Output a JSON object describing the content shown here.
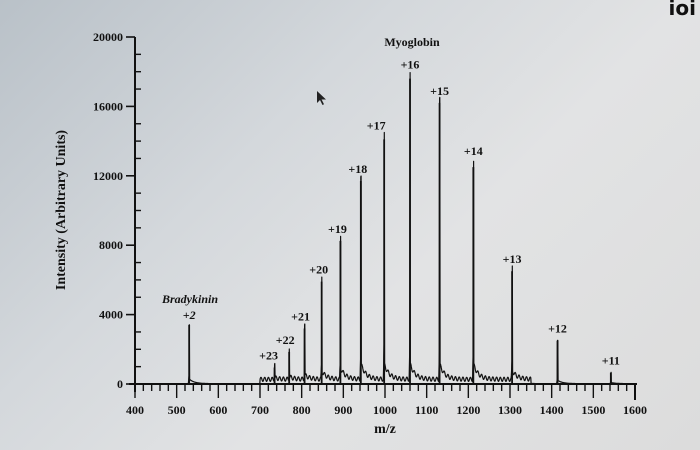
{
  "corner_text": "ioi",
  "chart_data": {
    "type": "line",
    "title": "",
    "xlabel": "m/z",
    "ylabel": "Intensity (Arbitrary Units)",
    "xlim": [
      400,
      1600
    ],
    "ylim": [
      0,
      20000
    ],
    "grid": false,
    "legend": null,
    "x_ticks": [
      "400",
      "500",
      "600",
      "700",
      "800",
      "900",
      "1000",
      "1100",
      "1200",
      "1300",
      "1400",
      "1500",
      "1600"
    ],
    "y_ticks": [
      "0",
      "4000",
      "8000",
      "12000",
      "16000",
      "20000"
    ],
    "annotations": [
      {
        "text": "Bradykinin",
        "style": "italic",
        "x": 530
      },
      {
        "text": "Myoglobin",
        "x": 1053
      }
    ],
    "series": [
      {
        "name": "Bradykinin",
        "peaks": [
          {
            "label": "+2",
            "mz": 530,
            "intensity": 3400
          }
        ]
      },
      {
        "name": "Myoglobin",
        "peaks": [
          {
            "label": "+23",
            "mz": 735,
            "intensity": 950
          },
          {
            "label": "+22",
            "mz": 770,
            "intensity": 1850
          },
          {
            "label": "+21",
            "mz": 807,
            "intensity": 3200
          },
          {
            "label": "+20",
            "mz": 848,
            "intensity": 5900
          },
          {
            "label": "+19",
            "mz": 893,
            "intensity": 8250
          },
          {
            "label": "+18",
            "mz": 942,
            "intensity": 11700
          },
          {
            "label": "+17",
            "mz": 998,
            "intensity": 14100
          },
          {
            "label": "+16",
            "mz": 1060,
            "intensity": 17600
          },
          {
            "label": "+15",
            "mz": 1131,
            "intensity": 16200
          },
          {
            "label": "+14",
            "mz": 1212,
            "intensity": 12500
          },
          {
            "label": "+13",
            "mz": 1305,
            "intensity": 6500
          },
          {
            "label": "+12",
            "mz": 1414,
            "intensity": 2500
          },
          {
            "label": "+11",
            "mz": 1542,
            "intensity": 650
          }
        ]
      }
    ]
  }
}
